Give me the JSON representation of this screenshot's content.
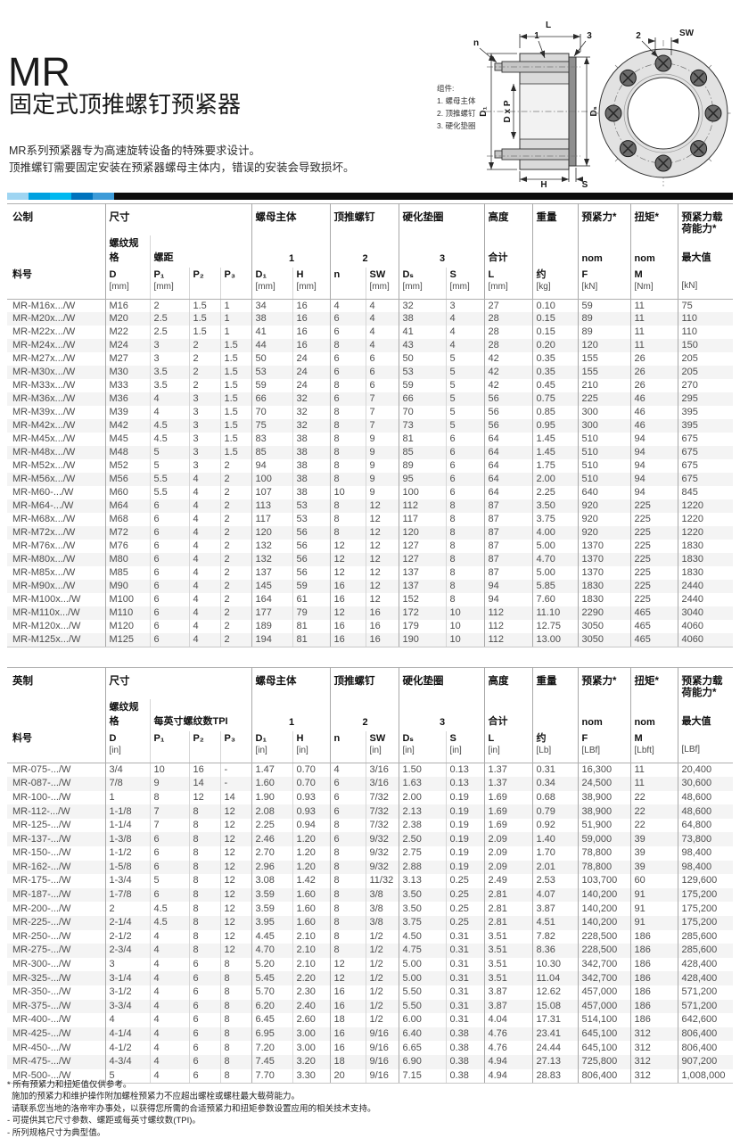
{
  "page": {
    "title": "MR",
    "subtitle": "固定式顶推螺钉预紧器",
    "description_lines": [
      "MR系列预紧器专为高速旋转设备的特殊要求设计。",
      "顶推螺钉需要固定安装在预紧器螺母主体内，错误的安装会导致损坏。"
    ]
  },
  "accent_bar": {
    "segments": [
      "#9fd5f2",
      "#00a1e0",
      "#00b9f0",
      "#0073bd",
      "#3d9bd8"
    ],
    "rest": "#0d0d0d"
  },
  "diagram": {
    "legend_title": "组件:",
    "legend_items": [
      "1. 螺母主体",
      "2. 顶推螺钉",
      "3. 硬化垫圈"
    ],
    "labels": {
      "l": "L",
      "n": "n",
      "part1": "1",
      "part3": "3",
      "part2": "2",
      "sw": "SW",
      "d1": "D₁",
      "dxp": "D x P",
      "ds": "Dₛ",
      "h": "H",
      "s": "S"
    }
  },
  "metric_table": {
    "group_row": [
      {
        "label": "公制",
        "span": 1
      },
      {
        "label": "尺寸",
        "span": 4
      },
      {
        "label": "螺母主体",
        "span": 2
      },
      {
        "label": "顶推螺钉",
        "span": 2
      },
      {
        "label": "硬化垫圈",
        "span": 2
      },
      {
        "label": "高度",
        "span": 1
      },
      {
        "label": "重量",
        "span": 1
      },
      {
        "label": "预紧力*",
        "span": 1
      },
      {
        "label": "扭矩*",
        "span": 1
      },
      {
        "label": "预紧力载荷能力*",
        "span": 1
      }
    ],
    "sub_row": [
      {
        "label": "",
        "span": 1
      },
      {
        "label": "螺纹规格",
        "span": 1
      },
      {
        "label": "螺距",
        "span": 3
      },
      {
        "label": "1",
        "span": 2,
        "center": true
      },
      {
        "label": "2",
        "span": 2,
        "center": true
      },
      {
        "label": "3",
        "span": 2,
        "center": true
      },
      {
        "label": "合计",
        "span": 1
      },
      {
        "label": "",
        "span": 1
      },
      {
        "label": "nom",
        "span": 1
      },
      {
        "label": "nom",
        "span": 1
      },
      {
        "label": "最大值",
        "span": 1
      }
    ],
    "columns": [
      {
        "label": "料号",
        "unit": ""
      },
      {
        "label": "D",
        "unit": "[mm]"
      },
      {
        "label": "P₁",
        "unit": "[mm]"
      },
      {
        "label": "P₂",
        "unit": ""
      },
      {
        "label": "P₃",
        "unit": ""
      },
      {
        "label": "D₁",
        "unit": "[mm]"
      },
      {
        "label": "H",
        "unit": "[mm]"
      },
      {
        "label": "n",
        "unit": ""
      },
      {
        "label": "SW",
        "unit": "[mm]"
      },
      {
        "label": "Dₛ",
        "unit": "[mm]"
      },
      {
        "label": "S",
        "unit": "[mm]"
      },
      {
        "label": "L",
        "unit": "[mm]"
      },
      {
        "label": "约",
        "unit": "[kg]"
      },
      {
        "label": "F",
        "unit": "[kN]"
      },
      {
        "label": "M",
        "unit": "[Nm]"
      },
      {
        "label": "",
        "unit": "[kN]"
      }
    ],
    "rows": [
      [
        "MR-M16x.../W",
        "M16",
        "2",
        "1.5",
        "1",
        "34",
        "16",
        "4",
        "4",
        "32",
        "3",
        "27",
        "0.10",
        "59",
        "11",
        "75"
      ],
      [
        "MR-M20x.../W",
        "M20",
        "2.5",
        "1.5",
        "1",
        "38",
        "16",
        "6",
        "4",
        "38",
        "4",
        "28",
        "0.15",
        "89",
        "11",
        "110"
      ],
      [
        "MR-M22x.../W",
        "M22",
        "2.5",
        "1.5",
        "1",
        "41",
        "16",
        "6",
        "4",
        "41",
        "4",
        "28",
        "0.15",
        "89",
        "11",
        "110"
      ],
      [
        "MR-M24x.../W",
        "M24",
        "3",
        "2",
        "1.5",
        "44",
        "16",
        "8",
        "4",
        "43",
        "4",
        "28",
        "0.20",
        "120",
        "11",
        "150"
      ],
      [
        "MR-M27x.../W",
        "M27",
        "3",
        "2",
        "1.5",
        "50",
        "24",
        "6",
        "6",
        "50",
        "5",
        "42",
        "0.35",
        "155",
        "26",
        "205"
      ],
      [
        "MR-M30x.../W",
        "M30",
        "3.5",
        "2",
        "1.5",
        "53",
        "24",
        "6",
        "6",
        "53",
        "5",
        "42",
        "0.35",
        "155",
        "26",
        "205"
      ],
      [
        "MR-M33x.../W",
        "M33",
        "3.5",
        "2",
        "1.5",
        "59",
        "24",
        "8",
        "6",
        "59",
        "5",
        "42",
        "0.45",
        "210",
        "26",
        "270"
      ],
      [
        "MR-M36x.../W",
        "M36",
        "4",
        "3",
        "1.5",
        "66",
        "32",
        "6",
        "7",
        "66",
        "5",
        "56",
        "0.75",
        "225",
        "46",
        "295"
      ],
      [
        "MR-M39x.../W",
        "M39",
        "4",
        "3",
        "1.5",
        "70",
        "32",
        "8",
        "7",
        "70",
        "5",
        "56",
        "0.85",
        "300",
        "46",
        "395"
      ],
      [
        "MR-M42x.../W",
        "M42",
        "4.5",
        "3",
        "1.5",
        "75",
        "32",
        "8",
        "7",
        "73",
        "5",
        "56",
        "0.95",
        "300",
        "46",
        "395"
      ],
      [
        "MR-M45x.../W",
        "M45",
        "4.5",
        "3",
        "1.5",
        "83",
        "38",
        "8",
        "9",
        "81",
        "6",
        "64",
        "1.45",
        "510",
        "94",
        "675"
      ],
      [
        "MR-M48x.../W",
        "M48",
        "5",
        "3",
        "1.5",
        "85",
        "38",
        "8",
        "9",
        "85",
        "6",
        "64",
        "1.45",
        "510",
        "94",
        "675"
      ],
      [
        "MR-M52x.../W",
        "M52",
        "5",
        "3",
        "2",
        "94",
        "38",
        "8",
        "9",
        "89",
        "6",
        "64",
        "1.75",
        "510",
        "94",
        "675"
      ],
      [
        "MR-M56x.../W",
        "M56",
        "5.5",
        "4",
        "2",
        "100",
        "38",
        "8",
        "9",
        "95",
        "6",
        "64",
        "2.00",
        "510",
        "94",
        "675"
      ],
      [
        "MR-M60-.../W",
        "M60",
        "5.5",
        "4",
        "2",
        "107",
        "38",
        "10",
        "9",
        "100",
        "6",
        "64",
        "2.25",
        "640",
        "94",
        "845"
      ],
      [
        "MR-M64-.../W",
        "M64",
        "6",
        "4",
        "2",
        "113",
        "53",
        "8",
        "12",
        "112",
        "8",
        "87",
        "3.50",
        "920",
        "225",
        "1220"
      ],
      [
        "MR-M68x.../W",
        "M68",
        "6",
        "4",
        "2",
        "117",
        "53",
        "8",
        "12",
        "117",
        "8",
        "87",
        "3.75",
        "920",
        "225",
        "1220"
      ],
      [
        "MR-M72x.../W",
        "M72",
        "6",
        "4",
        "2",
        "120",
        "56",
        "8",
        "12",
        "120",
        "8",
        "87",
        "4.00",
        "920",
        "225",
        "1220"
      ],
      [
        "MR-M76x.../W",
        "M76",
        "6",
        "4",
        "2",
        "132",
        "56",
        "12",
        "12",
        "127",
        "8",
        "87",
        "5.00",
        "1370",
        "225",
        "1830"
      ],
      [
        "MR-M80x.../W",
        "M80",
        "6",
        "4",
        "2",
        "132",
        "56",
        "12",
        "12",
        "127",
        "8",
        "87",
        "4.70",
        "1370",
        "225",
        "1830"
      ],
      [
        "MR-M85x.../W",
        "M85",
        "6",
        "4",
        "2",
        "137",
        "56",
        "12",
        "12",
        "137",
        "8",
        "87",
        "5.00",
        "1370",
        "225",
        "1830"
      ],
      [
        "MR-M90x.../W",
        "M90",
        "6",
        "4",
        "2",
        "145",
        "59",
        "16",
        "12",
        "137",
        "8",
        "94",
        "5.85",
        "1830",
        "225",
        "2440"
      ],
      [
        "MR-M100x.../W",
        "M100",
        "6",
        "4",
        "2",
        "164",
        "61",
        "16",
        "12",
        "152",
        "8",
        "94",
        "7.60",
        "1830",
        "225",
        "2440"
      ],
      [
        "MR-M110x.../W",
        "M110",
        "6",
        "4",
        "2",
        "177",
        "79",
        "12",
        "16",
        "172",
        "10",
        "112",
        "11.10",
        "2290",
        "465",
        "3040"
      ],
      [
        "MR-M120x.../W",
        "M120",
        "6",
        "4",
        "2",
        "189",
        "81",
        "16",
        "16",
        "179",
        "10",
        "112",
        "12.75",
        "3050",
        "465",
        "4060"
      ],
      [
        "MR-M125x.../W",
        "M125",
        "6",
        "4",
        "2",
        "194",
        "81",
        "16",
        "16",
        "190",
        "10",
        "112",
        "13.00",
        "3050",
        "465",
        "4060"
      ]
    ]
  },
  "imperial_table": {
    "group_row": [
      {
        "label": "英制",
        "span": 1
      },
      {
        "label": "尺寸",
        "span": 4
      },
      {
        "label": "螺母主体",
        "span": 2
      },
      {
        "label": "顶推螺钉",
        "span": 2
      },
      {
        "label": "硬化垫圈",
        "span": 2
      },
      {
        "label": "高度",
        "span": 1
      },
      {
        "label": "重量",
        "span": 1
      },
      {
        "label": "预紧力*",
        "span": 1
      },
      {
        "label": "扭矩*",
        "span": 1
      },
      {
        "label": "预紧力载荷能力*",
        "span": 1
      }
    ],
    "sub_row": [
      {
        "label": "",
        "span": 1
      },
      {
        "label": "螺纹规格",
        "span": 1
      },
      {
        "label": "每英寸螺纹数TPI",
        "span": 3
      },
      {
        "label": "1",
        "span": 2,
        "center": true
      },
      {
        "label": "2",
        "span": 2,
        "center": true
      },
      {
        "label": "3",
        "span": 2,
        "center": true
      },
      {
        "label": "合计",
        "span": 1
      },
      {
        "label": "",
        "span": 1
      },
      {
        "label": "nom",
        "span": 1
      },
      {
        "label": "nom",
        "span": 1
      },
      {
        "label": "最大值",
        "span": 1
      }
    ],
    "columns": [
      {
        "label": "料号",
        "unit": ""
      },
      {
        "label": "D",
        "unit": "[in]"
      },
      {
        "label": "P₁",
        "unit": ""
      },
      {
        "label": "P₂",
        "unit": ""
      },
      {
        "label": "P₃",
        "unit": ""
      },
      {
        "label": "D₁",
        "unit": "[in]"
      },
      {
        "label": "H",
        "unit": "[in]"
      },
      {
        "label": "n",
        "unit": ""
      },
      {
        "label": "SW",
        "unit": "[in]"
      },
      {
        "label": "Dₛ",
        "unit": "[in]"
      },
      {
        "label": "S",
        "unit": "[in]"
      },
      {
        "label": "L",
        "unit": "[in]"
      },
      {
        "label": "约",
        "unit": "[Lb]"
      },
      {
        "label": "F",
        "unit": "[LBf]"
      },
      {
        "label": "M",
        "unit": "[Lbft]"
      },
      {
        "label": "",
        "unit": "[LBf]"
      }
    ],
    "rows": [
      [
        "MR-075-.../W",
        "3/4",
        "10",
        "16",
        "-",
        "1.47",
        "0.70",
        "4",
        "3/16",
        "1.50",
        "0.13",
        "1.37",
        "0.31",
        "16,300",
        "11",
        "20,400"
      ],
      [
        "MR-087-.../W",
        "7/8",
        "9",
        "14",
        "-",
        "1.60",
        "0.70",
        "6",
        "3/16",
        "1.63",
        "0.13",
        "1.37",
        "0.34",
        "24,500",
        "11",
        "30,600"
      ],
      [
        "MR-100-.../W",
        "1",
        "8",
        "12",
        "14",
        "1.90",
        "0.93",
        "6",
        "7/32",
        "2.00",
        "0.19",
        "1.69",
        "0.68",
        "38,900",
        "22",
        "48,600"
      ],
      [
        "MR-112-.../W",
        "1-1/8",
        "7",
        "8",
        "12",
        "2.08",
        "0.93",
        "6",
        "7/32",
        "2.13",
        "0.19",
        "1.69",
        "0.79",
        "38,900",
        "22",
        "48,600"
      ],
      [
        "MR-125-.../W",
        "1-1/4",
        "7",
        "8",
        "12",
        "2.25",
        "0.94",
        "8",
        "7/32",
        "2.38",
        "0.19",
        "1.69",
        "0.92",
        "51,900",
        "22",
        "64,800"
      ],
      [
        "MR-137-.../W",
        "1-3/8",
        "6",
        "8",
        "12",
        "2.46",
        "1.20",
        "6",
        "9/32",
        "2.50",
        "0.19",
        "2.09",
        "1.40",
        "59,000",
        "39",
        "73,800"
      ],
      [
        "MR-150-.../W",
        "1-1/2",
        "6",
        "8",
        "12",
        "2.70",
        "1.20",
        "8",
        "9/32",
        "2.75",
        "0.19",
        "2.09",
        "1.70",
        "78,800",
        "39",
        "98,400"
      ],
      [
        "MR-162-.../W",
        "1-5/8",
        "6",
        "8",
        "12",
        "2.96",
        "1.20",
        "8",
        "9/32",
        "2.88",
        "0.19",
        "2.09",
        "2.01",
        "78,800",
        "39",
        "98,400"
      ],
      [
        "MR-175-.../W",
        "1-3/4",
        "5",
        "8",
        "12",
        "3.08",
        "1.42",
        "8",
        "11/32",
        "3.13",
        "0.25",
        "2.49",
        "2.53",
        "103,700",
        "60",
        "129,600"
      ],
      [
        "MR-187-.../W",
        "1-7/8",
        "6",
        "8",
        "12",
        "3.59",
        "1.60",
        "8",
        "3/8",
        "3.50",
        "0.25",
        "2.81",
        "4.07",
        "140,200",
        "91",
        "175,200"
      ],
      [
        "MR-200-.../W",
        "2",
        "4.5",
        "8",
        "12",
        "3.59",
        "1.60",
        "8",
        "3/8",
        "3.50",
        "0.25",
        "2.81",
        "3.87",
        "140,200",
        "91",
        "175,200"
      ],
      [
        "MR-225-.../W",
        "2-1/4",
        "4.5",
        "8",
        "12",
        "3.95",
        "1.60",
        "8",
        "3/8",
        "3.75",
        "0.25",
        "2.81",
        "4.51",
        "140,200",
        "91",
        "175,200"
      ],
      [
        "MR-250-.../W",
        "2-1/2",
        "4",
        "8",
        "12",
        "4.45",
        "2.10",
        "8",
        "1/2",
        "4.50",
        "0.31",
        "3.51",
        "7.82",
        "228,500",
        "186",
        "285,600"
      ],
      [
        "MR-275-.../W",
        "2-3/4",
        "4",
        "8",
        "12",
        "4.70",
        "2.10",
        "8",
        "1/2",
        "4.75",
        "0.31",
        "3.51",
        "8.36",
        "228,500",
        "186",
        "285,600"
      ],
      [
        "MR-300-.../W",
        "3",
        "4",
        "6",
        "8",
        "5.20",
        "2.10",
        "12",
        "1/2",
        "5.00",
        "0.31",
        "3.51",
        "10.30",
        "342,700",
        "186",
        "428,400"
      ],
      [
        "MR-325-.../W",
        "3-1/4",
        "4",
        "6",
        "8",
        "5.45",
        "2.20",
        "12",
        "1/2",
        "5.00",
        "0.31",
        "3.51",
        "11.04",
        "342,700",
        "186",
        "428,400"
      ],
      [
        "MR-350-.../W",
        "3-1/2",
        "4",
        "6",
        "8",
        "5.70",
        "2.30",
        "16",
        "1/2",
        "5.50",
        "0.31",
        "3.87",
        "12.62",
        "457,000",
        "186",
        "571,200"
      ],
      [
        "MR-375-.../W",
        "3-3/4",
        "4",
        "6",
        "8",
        "6.20",
        "2.40",
        "16",
        "1/2",
        "5.50",
        "0.31",
        "3.87",
        "15.08",
        "457,000",
        "186",
        "571,200"
      ],
      [
        "MR-400-.../W",
        "4",
        "4",
        "6",
        "8",
        "6.45",
        "2.60",
        "18",
        "1/2",
        "6.00",
        "0.31",
        "4.04",
        "17.31",
        "514,100",
        "186",
        "642,600"
      ],
      [
        "MR-425-.../W",
        "4-1/4",
        "4",
        "6",
        "8",
        "6.95",
        "3.00",
        "16",
        "9/16",
        "6.40",
        "0.38",
        "4.76",
        "23.41",
        "645,100",
        "312",
        "806,400"
      ],
      [
        "MR-450-.../W",
        "4-1/2",
        "4",
        "6",
        "8",
        "7.20",
        "3.00",
        "16",
        "9/16",
        "6.65",
        "0.38",
        "4.76",
        "24.44",
        "645,100",
        "312",
        "806,400"
      ],
      [
        "MR-475-.../W",
        "4-3/4",
        "4",
        "6",
        "8",
        "7.45",
        "3.20",
        "18",
        "9/16",
        "6.90",
        "0.38",
        "4.94",
        "27.13",
        "725,800",
        "312",
        "907,200"
      ],
      [
        "MR-500-.../W",
        "5",
        "4",
        "6",
        "8",
        "7.70",
        "3.30",
        "20",
        "9/16",
        "7.15",
        "0.38",
        "4.94",
        "28.83",
        "806,400",
        "312",
        "1,008,000"
      ]
    ]
  },
  "footnotes": [
    "* 所有预紧力和扭矩值仅供参考。",
    "施加的预紧力和维护操作附加螺栓预紧力不应超出螺栓或螺柱最大载荷能力。",
    "请联系您当地的洛帝牢办事处，以获得您所需的合适预紧力和扭矩参数设置应用的相关技术支持。",
    "- 可提供其它尺寸参数、螺距或每英寸螺纹数(TPI)。",
    "- 所列规格尺寸为典型值。"
  ]
}
